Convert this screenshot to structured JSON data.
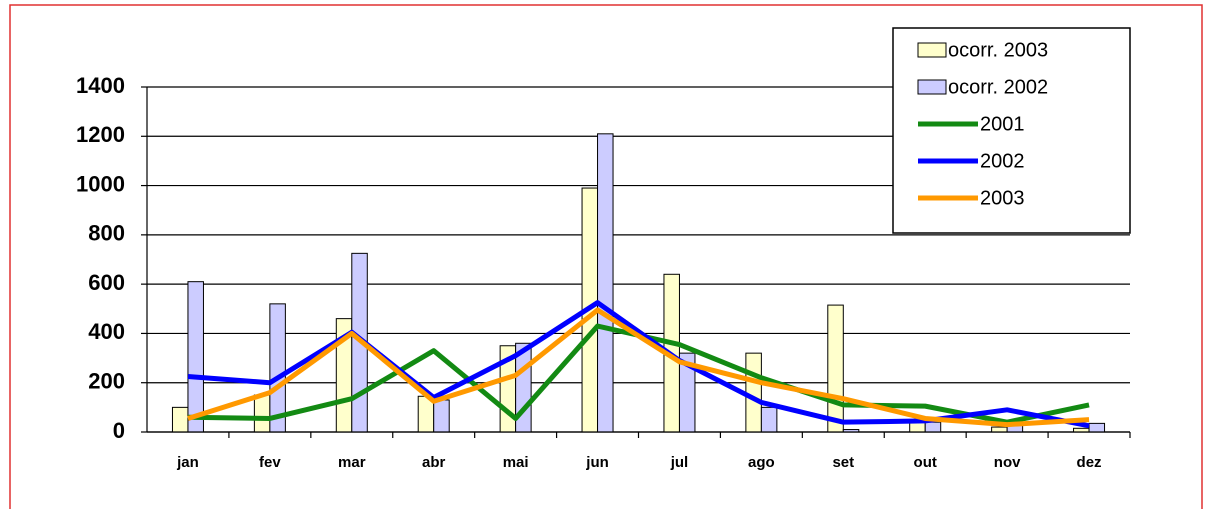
{
  "chart_data": {
    "type": "bar_line",
    "categories": [
      "jan",
      "fev",
      "mar",
      "abr",
      "mai",
      "jun",
      "jul",
      "ago",
      "set",
      "out",
      "nov",
      "dez"
    ],
    "series": [
      {
        "name": "ocorr. 2003",
        "type": "bar",
        "color": "#ffffcc",
        "values": [
          100,
          150,
          460,
          145,
          350,
          990,
          640,
          320,
          515,
          40,
          20,
          15
        ]
      },
      {
        "name": "ocorr. 2002",
        "type": "bar",
        "color": "#ccccff",
        "values": [
          610,
          520,
          725,
          130,
          360,
          1210,
          320,
          100,
          10,
          40,
          30,
          35
        ]
      },
      {
        "name": "2001",
        "type": "line",
        "color": "#138a13",
        "values": [
          60,
          55,
          135,
          330,
          55,
          430,
          355,
          220,
          110,
          105,
          40,
          110
        ]
      },
      {
        "name": "2002",
        "type": "line",
        "color": "#0000ff",
        "values": [
          225,
          200,
          405,
          140,
          310,
          525,
          290,
          120,
          40,
          45,
          90,
          25
        ]
      },
      {
        "name": "2003",
        "type": "line",
        "color": "#ff9900",
        "values": [
          55,
          160,
          400,
          125,
          230,
          495,
          285,
          200,
          135,
          55,
          30,
          50
        ]
      }
    ],
    "ylim": [
      0,
      1400
    ],
    "yticks": [
      0,
      200,
      400,
      600,
      800,
      1000,
      1200,
      1400
    ],
    "grid": true,
    "legend": "upper right"
  }
}
